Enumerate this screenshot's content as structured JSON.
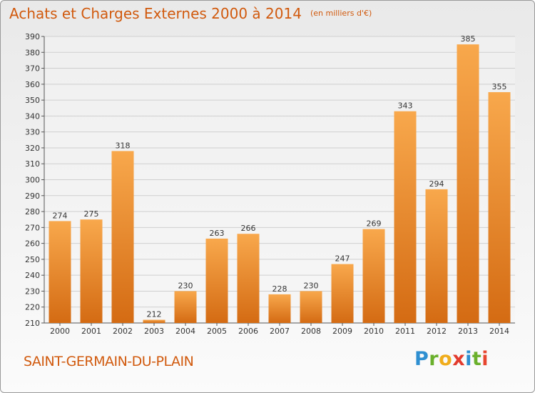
{
  "header": {
    "title": "Achats et Charges Externes 2000 à 2014",
    "unit": "(en milliers d'€)"
  },
  "footer": {
    "commune": "SAINT-GERMAIN-DU-PLAIN",
    "logo_letters": [
      "P",
      "r",
      "o",
      "x",
      "i",
      "t",
      "i"
    ]
  },
  "colors": {
    "bar_light": "#f8a84c",
    "bar_dark": "#d46b13",
    "title": "#d15a0e",
    "grid": "#cfcfcf"
  },
  "chart_data": {
    "type": "bar",
    "categories": [
      "2000",
      "2001",
      "2002",
      "2003",
      "2004",
      "2005",
      "2006",
      "2007",
      "2008",
      "2009",
      "2010",
      "2011",
      "2012",
      "2013",
      "2014"
    ],
    "values": [
      274,
      275,
      318,
      212,
      230,
      263,
      266,
      228,
      230,
      247,
      269,
      343,
      294,
      385,
      355
    ],
    "ylim": [
      210,
      390
    ],
    "yticks": [
      210,
      220,
      230,
      240,
      250,
      260,
      270,
      280,
      290,
      300,
      310,
      320,
      330,
      340,
      350,
      360,
      370,
      380,
      390
    ],
    "grid": true,
    "data_labels": true
  }
}
